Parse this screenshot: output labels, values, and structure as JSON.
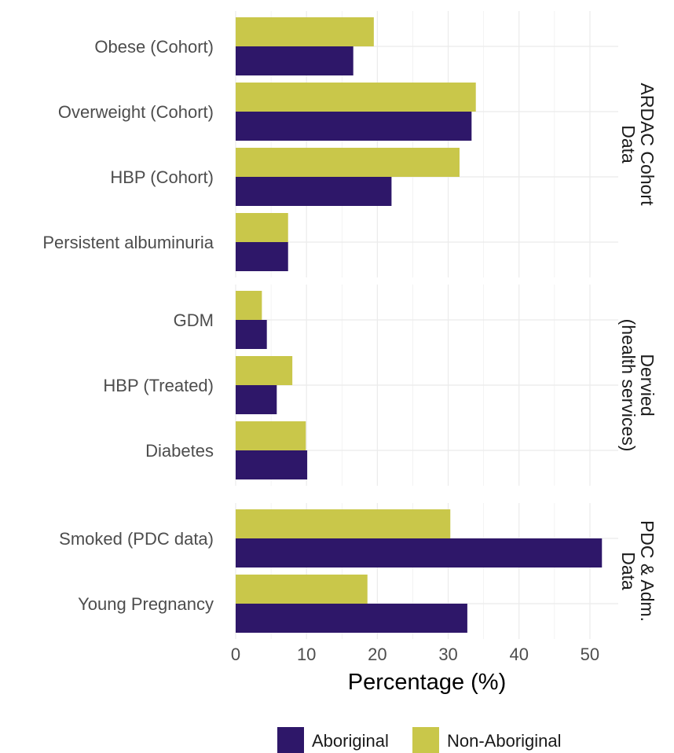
{
  "chart_data": {
    "type": "bar",
    "orientation": "horizontal",
    "xlabel": "Percentage (%)",
    "xlim": [
      0,
      54
    ],
    "xticks": [
      0,
      10,
      20,
      30,
      40,
      50
    ],
    "grid": true,
    "legend": {
      "position": "bottom",
      "entries": [
        "Aboriginal",
        "Non-Aboriginal"
      ]
    },
    "colors": {
      "Aboriginal": "#2e1769",
      "Non-Aboriginal": "#c9c74a"
    },
    "panels": [
      {
        "label": "ARDAC Cohort\nData",
        "categories": [
          "Obese (Cohort)",
          "Overweight (Cohort)",
          "HBP (Cohort)",
          "Persistent albuminuria"
        ],
        "series": [
          {
            "name": "Aboriginal",
            "values": [
              16.6,
              33.3,
              22.0,
              7.4
            ]
          },
          {
            "name": "Non-Aboriginal",
            "values": [
              19.5,
              33.9,
              31.6,
              7.4
            ]
          }
        ]
      },
      {
        "label": "Dervied\n(health services)",
        "categories": [
          "GDM",
          "HBP (Treated)",
          "Diabetes"
        ],
        "series": [
          {
            "name": "Aboriginal",
            "values": [
              4.4,
              5.8,
              10.1
            ]
          },
          {
            "name": "Non-Aboriginal",
            "values": [
              3.7,
              8.0,
              9.9
            ]
          }
        ]
      },
      {
        "label": "PDC & Adm.\nData",
        "categories": [
          "Smoked (PDC data)",
          "Young Pregnancy"
        ],
        "series": [
          {
            "name": "Aboriginal",
            "values": [
              51.7,
              32.7
            ]
          },
          {
            "name": "Non-Aboriginal",
            "values": [
              30.3,
              18.6
            ]
          }
        ]
      }
    ]
  }
}
